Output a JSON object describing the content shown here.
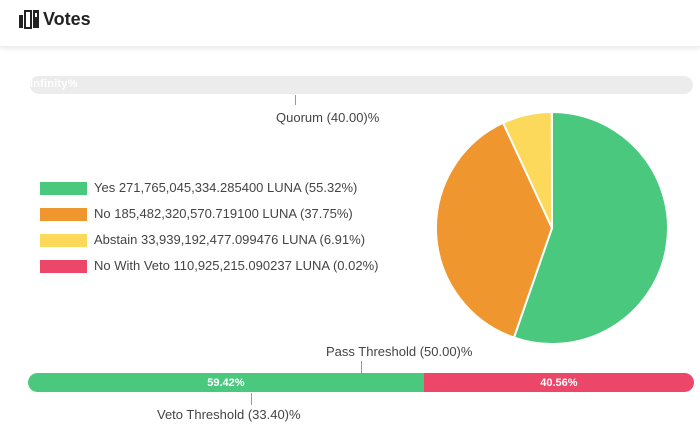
{
  "header": {
    "title": "Votes"
  },
  "quorum": {
    "bar_text": "Infinity%",
    "label": "Quorum (40.00)%"
  },
  "legend": [
    {
      "text": "Yes 271,765,045,334.285400 LUNA (55.32%)",
      "color": "#4ac97e"
    },
    {
      "text": "No 185,482,320,570.719100 LUNA (37.75%)",
      "color": "#f0962e"
    },
    {
      "text": "Abstain 33,939,192,477.099476 LUNA (6.91%)",
      "color": "#fcd95a"
    },
    {
      "text": "No With Veto 110,925,215.090237 LUNA (0.02%)",
      "color": "#ec4669"
    }
  ],
  "chart_data": {
    "type": "pie",
    "slices": [
      {
        "label": "Yes",
        "value": 55.32,
        "color": "#4ac97e"
      },
      {
        "label": "No",
        "value": 37.75,
        "color": "#f0962e"
      },
      {
        "label": "Abstain",
        "value": 6.91,
        "color": "#fcd95a"
      },
      {
        "label": "No With Veto",
        "value": 0.02,
        "color": "#ec4669"
      }
    ]
  },
  "thresholds": {
    "pass_label": "Pass Threshold (50.00)%",
    "veto_label": "Veto Threshold (33.40)%"
  },
  "result_bar": {
    "yes_pct": 59.42,
    "yes_text": "59.42%",
    "yes_color": "#4ac97e",
    "no_pct": 40.56,
    "no_text": "40.56%",
    "no_color": "#ec4669"
  }
}
